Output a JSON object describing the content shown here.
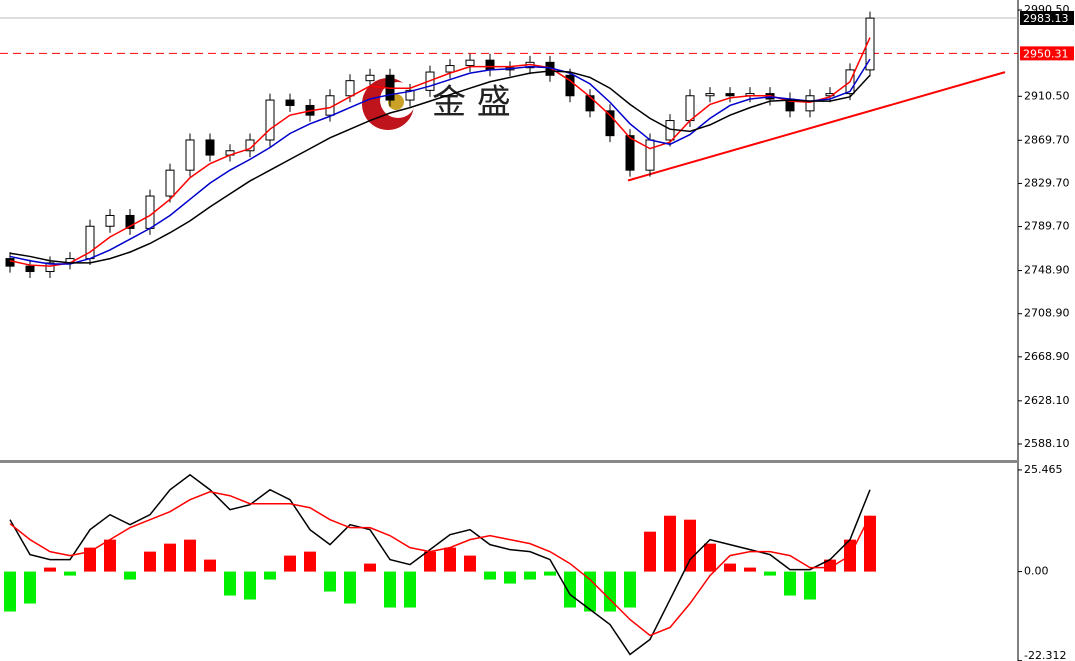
{
  "chart_data": [
    {
      "type": "candlestick",
      "open": [
        2760,
        2753,
        2748,
        2756,
        2760,
        2790,
        2800,
        2788,
        2818,
        2842,
        2870,
        2856,
        2860,
        2870,
        2907,
        2902,
        2893,
        2911,
        2925,
        2930,
        2907,
        2916,
        2933,
        2939,
        2944,
        2935,
        2937,
        2942,
        2930,
        2911,
        2897,
        2874,
        2842,
        2870,
        2888,
        2911,
        2913,
        2911,
        2913,
        2908,
        2897,
        2911,
        2913,
        2935
      ],
      "high": [
        2766,
        2759,
        2762,
        2766,
        2796,
        2806,
        2806,
        2824,
        2848,
        2876,
        2876,
        2866,
        2876,
        2913,
        2913,
        2908,
        2917,
        2931,
        2936,
        2936,
        2922,
        2939,
        2945,
        2950,
        2950,
        2943,
        2948,
        2948,
        2936,
        2917,
        2903,
        2880,
        2876,
        2894,
        2917,
        2919,
        2919,
        2919,
        2919,
        2914,
        2917,
        2919,
        2941,
        2989
      ],
      "low": [
        2747,
        2742,
        2742,
        2750,
        2754,
        2784,
        2782,
        2782,
        2812,
        2836,
        2850,
        2850,
        2854,
        2864,
        2896,
        2887,
        2887,
        2905,
        2919,
        2901,
        2901,
        2910,
        2927,
        2933,
        2929,
        2929,
        2931,
        2924,
        2905,
        2891,
        2868,
        2836,
        2836,
        2864,
        2882,
        2905,
        2905,
        2905,
        2902,
        2891,
        2891,
        2905,
        2907,
        2929
      ],
      "close": [
        2753,
        2748,
        2756,
        2760,
        2790,
        2800,
        2788,
        2818,
        2842,
        2870,
        2856,
        2860,
        2870,
        2907,
        2902,
        2893,
        2911,
        2925,
        2930,
        2907,
        2916,
        2933,
        2939,
        2944,
        2935,
        2937,
        2942,
        2930,
        2911,
        2897,
        2874,
        2842,
        2870,
        2888,
        2911,
        2913,
        2911,
        2913,
        2908,
        2897,
        2911,
        2913,
        2935,
        2983
      ],
      "moving_averages": [
        {
          "color": "#ff0000",
          "values": [
            2758,
            2754,
            2753,
            2756,
            2766,
            2780,
            2790,
            2800,
            2815,
            2835,
            2848,
            2856,
            2862,
            2880,
            2893,
            2897,
            2900,
            2910,
            2920,
            2918,
            2918,
            2925,
            2932,
            2938,
            2938,
            2938,
            2940,
            2937,
            2925,
            2910,
            2893,
            2872,
            2862,
            2868,
            2888,
            2903,
            2909,
            2911,
            2911,
            2906,
            2905,
            2910,
            2924,
            2965
          ]
        },
        {
          "color": "#0000cc",
          "values": [
            2762,
            2758,
            2755,
            2755,
            2760,
            2768,
            2778,
            2788,
            2800,
            2815,
            2830,
            2842,
            2852,
            2863,
            2876,
            2885,
            2892,
            2900,
            2908,
            2912,
            2915,
            2920,
            2926,
            2932,
            2935,
            2936,
            2938,
            2937,
            2932,
            2922,
            2905,
            2885,
            2870,
            2866,
            2875,
            2890,
            2902,
            2908,
            2910,
            2908,
            2906,
            2908,
            2915,
            2945
          ]
        },
        {
          "color": "#000000",
          "values": [
            2765,
            2762,
            2758,
            2756,
            2756,
            2760,
            2766,
            2774,
            2784,
            2795,
            2808,
            2820,
            2832,
            2842,
            2852,
            2862,
            2872,
            2880,
            2888,
            2895,
            2900,
            2906,
            2912,
            2918,
            2924,
            2928,
            2932,
            2934,
            2933,
            2928,
            2918,
            2903,
            2890,
            2880,
            2878,
            2884,
            2893,
            2900,
            2906,
            2907,
            2906,
            2906,
            2910,
            2930
          ]
        }
      ],
      "ylim": [
        2572.3,
        2999.8
      ],
      "yticks": [
        {
          "value": 2990.5,
          "label": "2990.50"
        },
        {
          "value": 2910.5,
          "label": "2910.50"
        },
        {
          "value": 2869.7,
          "label": "2869.70"
        },
        {
          "value": 2829.7,
          "label": "2829.70"
        },
        {
          "value": 2789.7,
          "label": "2789.70"
        },
        {
          "value": 2748.9,
          "label": "2748.90"
        },
        {
          "value": 2708.9,
          "label": "2708.90"
        },
        {
          "value": 2668.9,
          "label": "2668.90"
        },
        {
          "value": 2628.1,
          "label": "2628.10"
        },
        {
          "value": 2588.1,
          "label": "2588.10"
        }
      ],
      "last_price": 2983.13,
      "hline": 2950.31,
      "hline_color": "#ff0000",
      "trendline": {
        "x": [
          30.9,
          49.75
        ],
        "values": [
          2832.4,
          2932.9
        ],
        "color": "#ff0000"
      }
    },
    {
      "type": "macd",
      "histogram": [
        -10,
        -8,
        1,
        -1,
        6,
        8,
        -2,
        5,
        7,
        8,
        3,
        -6,
        -7,
        -2,
        4,
        5,
        -5,
        -8,
        2,
        -9,
        -9,
        5,
        6,
        4,
        -2,
        -3,
        -2,
        -1,
        -9,
        -10,
        -10,
        -9,
        10,
        14,
        13,
        7,
        2,
        1,
        -1,
        -6,
        -7,
        3,
        8,
        14
      ],
      "positive_color": "#ff0000",
      "negative_color": "#00ee00",
      "series": [
        {
          "color": "#000000",
          "values": [
            13,
            4.25,
            3,
            3,
            10.5,
            14.25,
            11.75,
            14.25,
            20.5,
            24.25,
            20.5,
            15.5,
            16.75,
            20.5,
            18,
            10.5,
            6.75,
            11.75,
            10.5,
            3,
            1.75,
            5.5,
            9.25,
            10.5,
            6.75,
            5.5,
            5,
            3,
            -5.75,
            -9.5,
            -13.25,
            -20.75,
            -17,
            -7,
            3,
            8,
            6.75,
            5.5,
            4.25,
            0.5,
            0.5,
            3,
            8,
            20.5
          ]
        },
        {
          "color": "#ff0000",
          "values": [
            12,
            8,
            5,
            4,
            5,
            8,
            11,
            13,
            15,
            18,
            20,
            19,
            17,
            17,
            17,
            16,
            13,
            11,
            11,
            9,
            6,
            5,
            6,
            8,
            9,
            8,
            7,
            5,
            2,
            -2,
            -7,
            -12,
            -16,
            -14,
            -8,
            -1,
            4,
            5,
            5,
            4,
            1,
            1,
            4,
            14
          ]
        }
      ],
      "ylim": [
        -22.4,
        27.2
      ],
      "yticks": [
        25.465,
        {
          "value": 0,
          "label": "0.00"
        },
        -22.312
      ]
    }
  ],
  "watermark": "金 盛"
}
